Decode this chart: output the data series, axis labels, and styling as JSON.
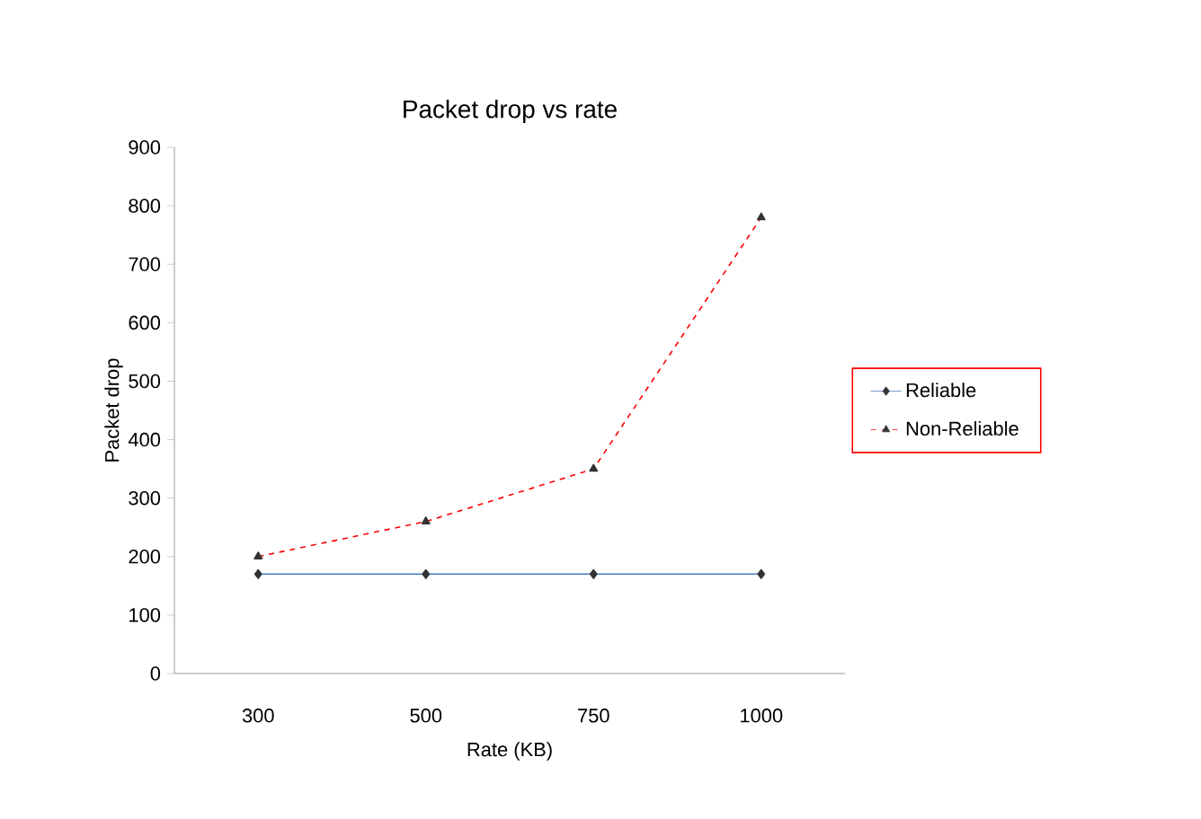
{
  "chart_data": {
    "type": "line",
    "title": "Packet drop vs rate",
    "xlabel": "Rate (KB)",
    "ylabel": "Packet drop",
    "categories": [
      "300",
      "500",
      "750",
      "1000"
    ],
    "series": [
      {
        "name": "Reliable",
        "color": "#4a7ebb",
        "values": [
          170,
          170,
          170,
          170
        ],
        "marker": "diamond",
        "line_style": "solid"
      },
      {
        "name": "Non-Reliable",
        "color": "#ff0000",
        "values": [
          200,
          260,
          350,
          780
        ],
        "marker": "triangle",
        "line_style": "dashed"
      }
    ],
    "ylim": [
      0,
      900
    ],
    "yticks": [
      0,
      100,
      200,
      300,
      400,
      500,
      600,
      700,
      800,
      900
    ],
    "grid": false,
    "legend": "right"
  }
}
